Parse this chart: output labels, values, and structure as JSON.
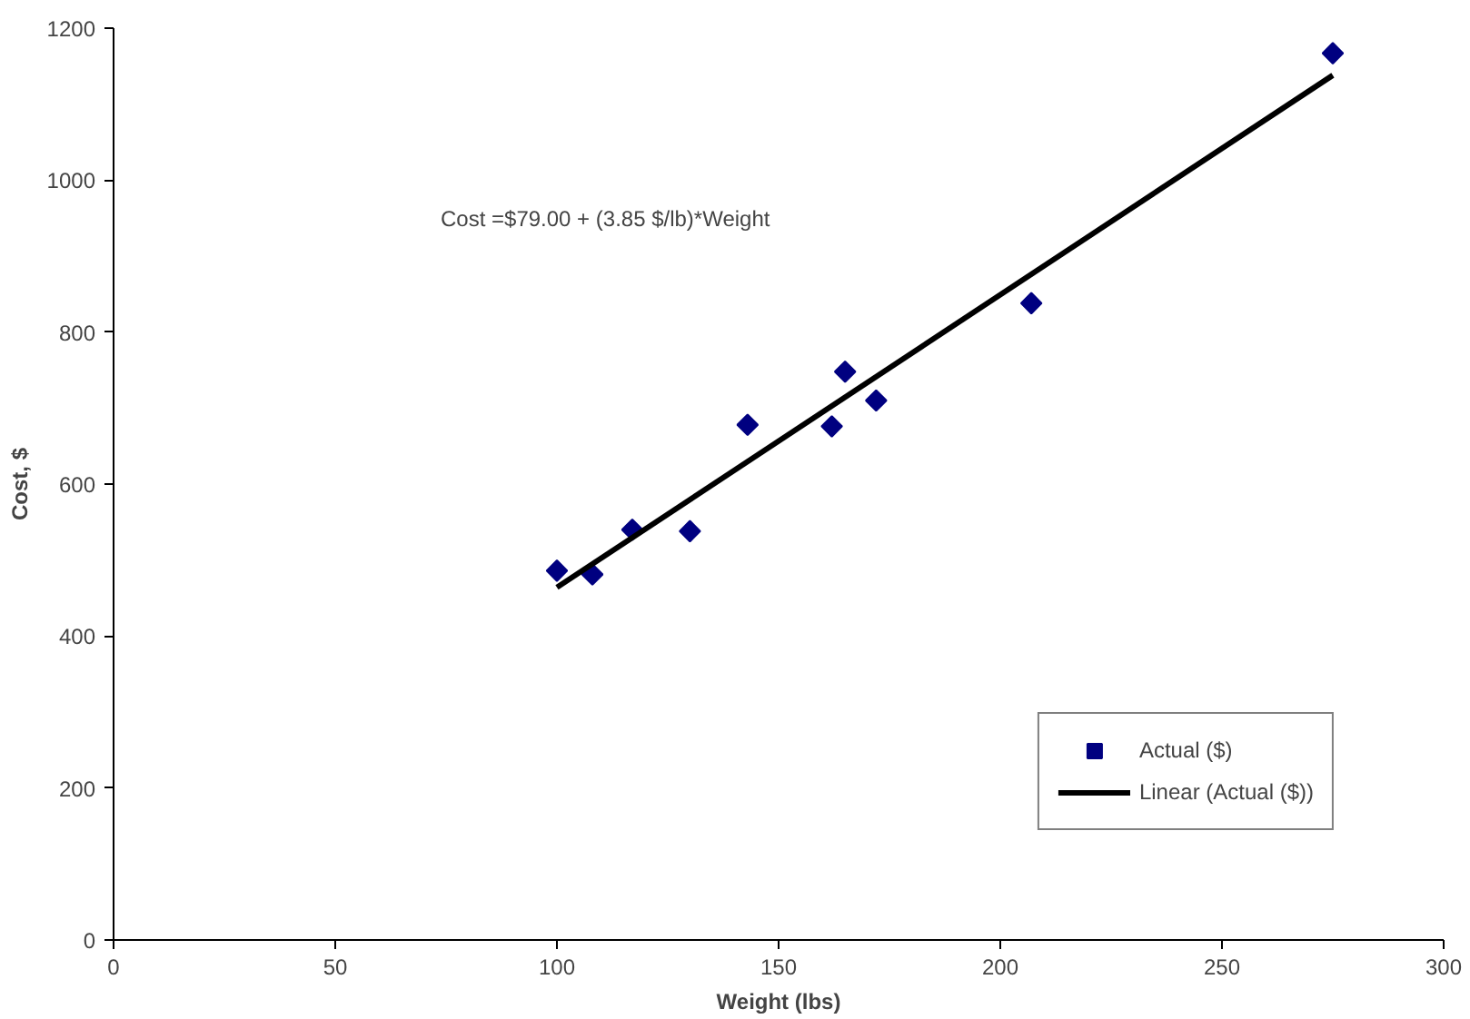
{
  "chart_data": {
    "type": "scatter",
    "xlabel": "Weight (lbs)",
    "ylabel": "Cost, $",
    "annotations": [
      "Cost =$79.00 + (3.85 $/lb)*Weight"
    ],
    "xlim": [
      0,
      300
    ],
    "xticks": [
      0,
      50,
      100,
      150,
      200,
      250,
      300
    ],
    "ylim": [
      0,
      1200
    ],
    "yticks": [
      0,
      200,
      400,
      600,
      800,
      1000,
      1200
    ],
    "x": [
      100,
      108,
      117,
      130,
      143,
      162,
      165,
      172,
      207,
      275
    ],
    "series": [
      {
        "name": "Actual ($)",
        "color": "#000080",
        "marker": "diamond",
        "values": [
          486,
          481,
          540,
          538,
          678,
          676,
          748,
          710,
          838,
          1167
        ]
      },
      {
        "name": "Linear (Actual ($))",
        "type": "line",
        "color": "#000000",
        "marker": "none",
        "line_style": "solid",
        "x": [
          100,
          275
        ],
        "values": [
          464,
          1138
        ]
      }
    ],
    "grid": false,
    "legend": "bottom right"
  }
}
